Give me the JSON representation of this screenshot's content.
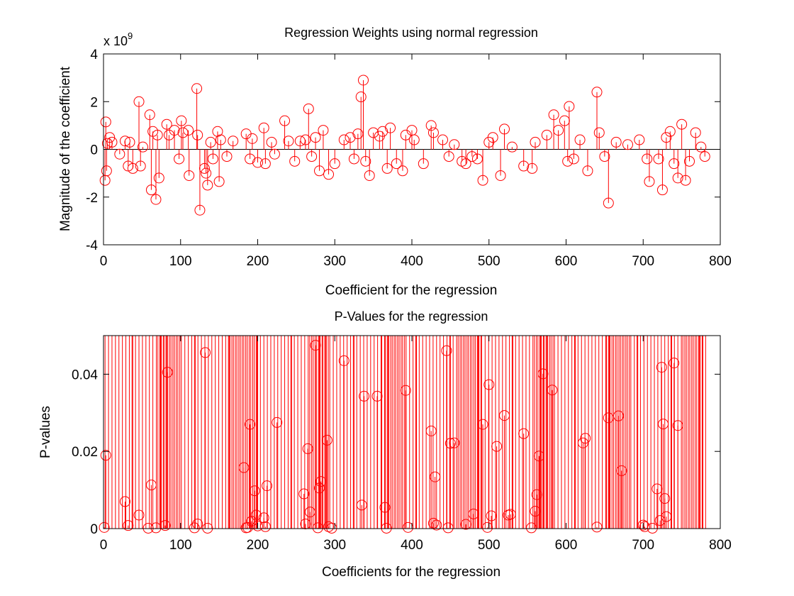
{
  "chart_data": [
    {
      "type": "stem",
      "title": "Regression Weights using normal regression",
      "xlabel": "Coefficient for the regression",
      "ylabel": "Magnitude of the coefficient",
      "exponent_label": "x 10",
      "exponent_power": "9",
      "xlim": [
        0,
        800
      ],
      "ylim": [
        -4,
        4
      ],
      "xticks": [
        "0",
        "100",
        "200",
        "300",
        "400",
        "500",
        "600",
        "700",
        "800"
      ],
      "yticks": [
        "-4",
        "-2",
        "0",
        "2",
        "4"
      ],
      "grid": false,
      "marker": "circle",
      "color": "#ff0000",
      "series": [
        {
          "x": [
            2,
            3,
            4,
            5,
            8,
            11,
            21,
            28,
            32,
            34,
            38,
            46,
            48,
            51,
            60,
            62,
            64,
            68,
            70,
            72,
            82,
            85,
            92,
            98,
            101,
            103,
            110,
            111,
            121,
            122,
            125,
            131,
            133,
            135,
            139,
            142,
            148,
            150,
            152,
            160,
            168,
            185,
            190,
            193,
            200,
            208,
            210,
            218,
            222,
            235,
            240,
            248,
            255,
            262,
            266,
            270,
            275,
            280,
            285,
            292,
            300,
            312,
            320,
            325,
            330,
            334,
            337,
            340,
            345,
            350,
            358,
            362,
            368,
            372,
            380,
            388,
            392,
            400,
            403,
            415,
            425,
            428,
            440,
            448,
            455,
            465,
            470,
            478,
            485,
            492,
            500,
            505,
            515,
            520,
            530,
            545,
            556,
            560,
            575,
            584,
            590,
            598,
            602,
            604,
            610,
            618,
            628,
            640,
            643,
            650,
            655,
            665,
            680,
            695,
            705,
            708,
            720,
            725,
            730,
            735,
            740,
            745,
            750,
            755,
            760,
            768,
            775,
            780
          ],
          "y": [
            -1.3,
            1.15,
            -0.9,
            0.25,
            0.5,
            0.3,
            -0.2,
            0.35,
            -0.7,
            0.3,
            -0.8,
            2.0,
            -0.7,
            0.1,
            1.45,
            -1.7,
            0.75,
            -2.1,
            0.6,
            -1.2,
            1.05,
            0.6,
            0.8,
            -0.4,
            1.2,
            0.7,
            0.8,
            -1.1,
            2.55,
            0.6,
            -2.55,
            -0.8,
            -1.0,
            -1.5,
            0.3,
            -0.4,
            0.75,
            -1.35,
            0.4,
            -0.3,
            0.35,
            0.65,
            -0.4,
            0.45,
            -0.55,
            0.9,
            -0.6,
            0.3,
            -0.2,
            1.2,
            0.35,
            -0.5,
            0.35,
            0.4,
            1.7,
            -0.3,
            0.5,
            -0.9,
            0.8,
            -1.05,
            -0.6,
            0.4,
            0.5,
            -0.4,
            0.65,
            2.2,
            2.9,
            -0.5,
            -1.1,
            0.7,
            0.55,
            0.75,
            -0.8,
            0.9,
            -0.6,
            -0.9,
            0.6,
            0.8,
            0.4,
            -0.6,
            1.0,
            0.7,
            0.4,
            -0.3,
            0.2,
            -0.5,
            -0.6,
            -0.3,
            -0.4,
            -1.3,
            0.3,
            0.5,
            -1.1,
            0.85,
            0.1,
            -0.7,
            -0.8,
            0.3,
            0.6,
            1.45,
            0.8,
            1.2,
            -0.5,
            1.8,
            -0.4,
            0.4,
            -0.9,
            2.4,
            0.7,
            -0.3,
            -2.25,
            0.3,
            0.2,
            0.4,
            -0.4,
            -1.35,
            -0.4,
            -1.7,
            0.5,
            0.75,
            -0.6,
            -1.2,
            1.05,
            -1.3,
            -0.5,
            0.7,
            0.1,
            -0.3
          ]
        }
      ]
    },
    {
      "type": "stem",
      "title": "P-Values for the regression",
      "xlabel": "Coefficients for the regression",
      "ylabel": "P-values",
      "xlim": [
        0,
        800
      ],
      "ylim": [
        0,
        0.05
      ],
      "xticks": [
        "0",
        "100",
        "200",
        "300",
        "400",
        "500",
        "600",
        "700",
        "800"
      ],
      "yticks": [
        "0",
        "0.02",
        "0.04"
      ],
      "grid": false,
      "marker": "circle",
      "color": "#ff0000",
      "series": [
        {
          "x": [
            1,
            3,
            28,
            32,
            46,
            58,
            62,
            68,
            80,
            83,
            118,
            122,
            132,
            135,
            182,
            185,
            187,
            190,
            192,
            196,
            198,
            200,
            208,
            210,
            212,
            225,
            260,
            262,
            265,
            268,
            275,
            278,
            280,
            282,
            290,
            292,
            296,
            312,
            335,
            338,
            355,
            365,
            367,
            392,
            395,
            425,
            428,
            430,
            432,
            445,
            447,
            450,
            455,
            470,
            480,
            492,
            498,
            500,
            503,
            510,
            520,
            525,
            528,
            545,
            555,
            560,
            562,
            565,
            570,
            582,
            622,
            625,
            640,
            655,
            668,
            672,
            700,
            702,
            712,
            718,
            722,
            724,
            726,
            728,
            730,
            740,
            745
          ],
          "y": [
            0.0003,
            0.019,
            0.007,
            0.0008,
            0.0035,
            0.0001,
            0.0113,
            0.0002,
            0.0008,
            0.0405,
            0.0002,
            0.0012,
            0.0456,
            0.0001,
            0.0158,
            0.0002,
            0.0003,
            0.027,
            0.0019,
            0.0098,
            0.0035,
            0.0007,
            0.0028,
            0.0005,
            0.0111,
            0.0275,
            0.009,
            0.0012,
            0.0207,
            0.0043,
            0.0475,
            0.0002,
            0.0105,
            0.0122,
            0.0229,
            0.0005,
            0.0001,
            0.0435,
            0.0061,
            0.0343,
            0.0343,
            0.0055,
            0.0001,
            0.0358,
            0.0003,
            0.0253,
            0.0014,
            0.0134,
            0.0009,
            0.0461,
            0.0002,
            0.0221,
            0.0222,
            0.0011,
            0.0038,
            0.027,
            0.0003,
            0.0373,
            0.0033,
            0.0213,
            0.0293,
            0.0035,
            0.0037,
            0.0246,
            0.0002,
            0.0045,
            0.0088,
            0.0188,
            0.0401,
            0.0359,
            0.0222,
            0.0234,
            0.0004,
            0.0287,
            0.0292,
            0.015,
            0.0009,
            0.0005,
            0.0001,
            0.0103,
            0.0021,
            0.0418,
            0.0271,
            0.0078,
            0.0031,
            0.0429,
            0.0267
          ]
        }
      ]
    }
  ]
}
